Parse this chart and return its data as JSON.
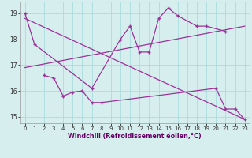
{
  "xlabel": "Windchill (Refroidissement éolien,°C)",
  "line1_pts": [
    [
      0,
      19.0
    ],
    [
      1,
      17.8
    ],
    [
      7,
      16.1
    ],
    [
      10,
      18.0
    ],
    [
      11,
      18.5
    ],
    [
      12,
      17.5
    ],
    [
      13,
      17.5
    ],
    [
      14,
      18.8
    ],
    [
      15,
      19.2
    ],
    [
      16,
      18.9
    ],
    [
      18,
      18.5
    ],
    [
      19,
      18.5
    ],
    [
      21,
      18.3
    ]
  ],
  "line2_pts": [
    [
      2,
      16.6
    ],
    [
      3,
      16.5
    ],
    [
      4,
      15.8
    ],
    [
      5,
      15.95
    ],
    [
      6,
      16.0
    ],
    [
      7,
      15.55
    ],
    [
      8,
      15.55
    ],
    [
      20,
      16.1
    ],
    [
      21,
      15.3
    ],
    [
      22,
      15.3
    ],
    [
      23,
      14.9
    ]
  ],
  "trend1_x": [
    0,
    23
  ],
  "trend1_y": [
    16.9,
    18.5
  ],
  "trend2_x": [
    0,
    23
  ],
  "trend2_y": [
    18.8,
    14.9
  ],
  "ylim": [
    14.75,
    19.45
  ],
  "xlim": [
    -0.5,
    23.5
  ],
  "yticks": [
    15,
    16,
    17,
    18,
    19
  ],
  "xticks": [
    0,
    1,
    2,
    3,
    4,
    5,
    6,
    7,
    8,
    9,
    10,
    11,
    12,
    13,
    14,
    15,
    16,
    17,
    18,
    19,
    20,
    21,
    22,
    23
  ],
  "line_color": "#993399",
  "bg_color": "#d6eeee",
  "grid_color": "#aadddd",
  "xlabel_color": "#660066"
}
